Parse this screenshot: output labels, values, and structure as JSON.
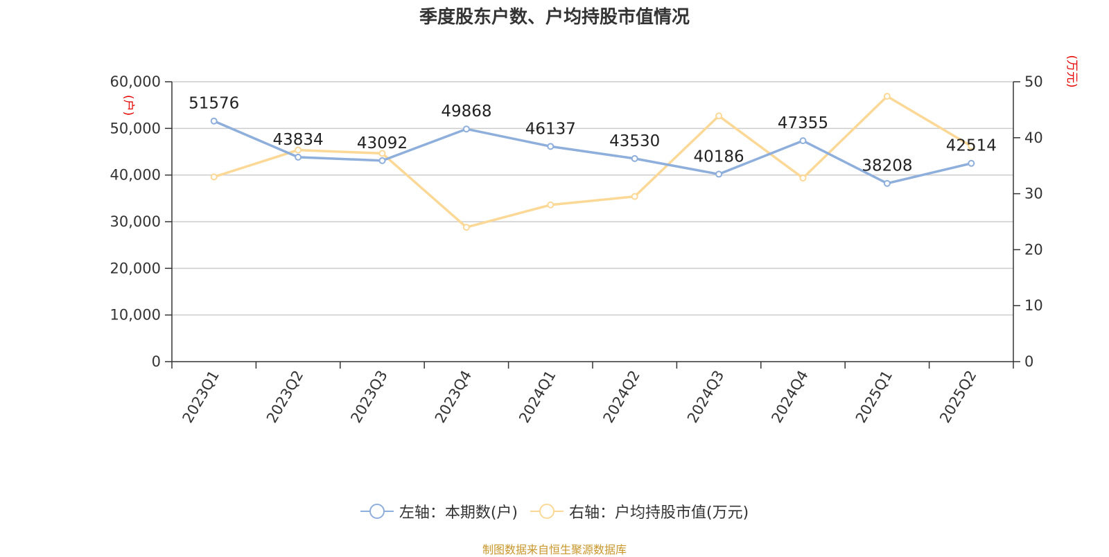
{
  "title": "季度股东户数、户均持股市值情况",
  "source": "制图数据来自恒生聚源数据库",
  "colors": {
    "left_series": "#8eaedb",
    "right_series": "#fbd896",
    "axis": "#333333",
    "grid": "#cccccc",
    "unit": "#e60000"
  },
  "chart_data": {
    "type": "line",
    "title": "季度股东户数、户均持股市值情况",
    "categories": [
      "2023Q1",
      "2023Q2",
      "2023Q3",
      "2023Q4",
      "2024Q1",
      "2024Q2",
      "2024Q3",
      "2024Q4",
      "2025Q1",
      "2025Q2"
    ],
    "left_axis": {
      "unit": "(户)",
      "ylim": [
        0,
        60000
      ],
      "ticks": [
        0,
        10000,
        20000,
        30000,
        40000,
        50000,
        60000
      ],
      "tick_labels": [
        "0",
        "10,000",
        "20,000",
        "30,000",
        "40,000",
        "50,000",
        "60,000"
      ]
    },
    "right_axis": {
      "unit": "(万元)",
      "ylim": [
        0,
        50
      ],
      "ticks": [
        0,
        10,
        20,
        30,
        40,
        50
      ],
      "tick_labels": [
        "0",
        "10",
        "20",
        "30",
        "40",
        "50"
      ]
    },
    "series": [
      {
        "name": "左轴：本期数(户)",
        "axis": "left",
        "values": [
          51576,
          43834,
          43092,
          49868,
          46137,
          43530,
          40186,
          47355,
          38208,
          42514
        ],
        "labels": [
          "51576",
          "43834",
          "43092",
          "49868",
          "46137",
          "43530",
          "40186",
          "47355",
          "38208",
          "42514"
        ]
      },
      {
        "name": "右轴：户均持股市值(万元)",
        "axis": "right",
        "values": [
          33.0,
          37.8,
          37.2,
          24.0,
          28.0,
          29.5,
          43.9,
          32.8,
          47.4,
          38.5
        ]
      }
    ],
    "grid": true,
    "legend_position": "bottom-center"
  }
}
